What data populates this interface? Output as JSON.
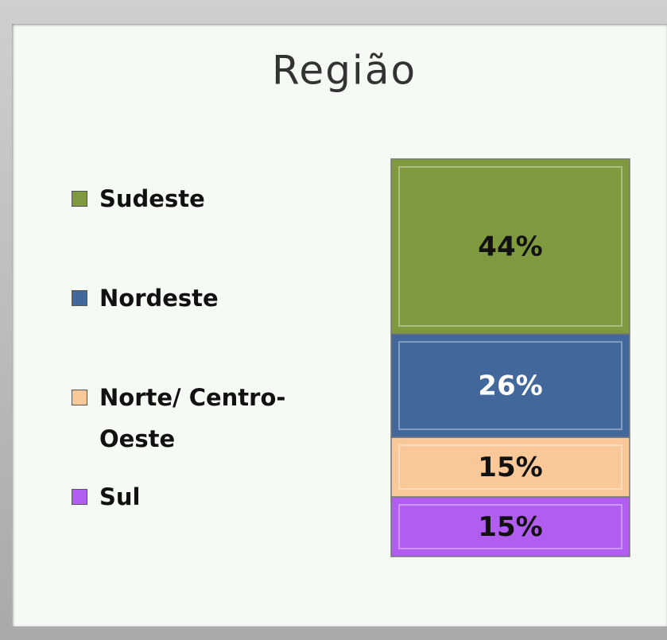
{
  "chart_data": {
    "type": "stacked_bar_100",
    "title": "Região",
    "series": [
      {
        "name": "Sudeste",
        "color": "#7f9a3e",
        "label_color": "#111111",
        "values": [
          44
        ],
        "value_labels": [
          "44%"
        ]
      },
      {
        "name": "Nordeste",
        "color": "#41679b",
        "label_color": "#ffffff",
        "values": [
          26
        ],
        "value_labels": [
          "26%"
        ]
      },
      {
        "name": "Norte/ Centro-Oeste",
        "color": "#f8c898",
        "label_color": "#111111",
        "values": [
          15
        ],
        "value_labels": [
          "15%"
        ]
      },
      {
        "name": "Sul",
        "color": "#b15ef0",
        "label_color": "#111111",
        "values": [
          15
        ],
        "value_labels": [
          "15%"
        ]
      }
    ],
    "legend": "left"
  }
}
